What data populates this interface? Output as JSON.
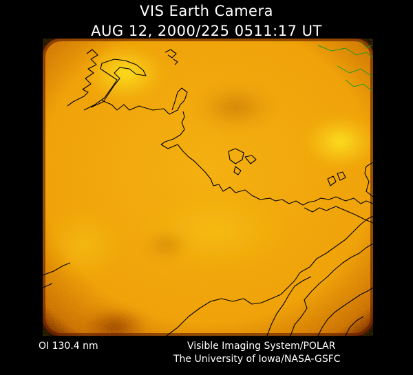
{
  "header": {
    "instrument": "VIS Earth Camera",
    "timestamp": "AUG 12, 2000/225 0511:17 UT"
  },
  "footer": {
    "band": "OI  130.4 nm",
    "system": "Visible Imaging System/POLAR",
    "institution": "The University of Iowa/NASA-GSFC"
  },
  "colors": {
    "background": "#000000",
    "text": "#ffffff",
    "aurora_core": "#ffe21a",
    "aurora_mid": "#f2a20a",
    "aurora_edge": "#6e2000",
    "coastline": "#000000",
    "grid_green": "#1f9a1f"
  }
}
